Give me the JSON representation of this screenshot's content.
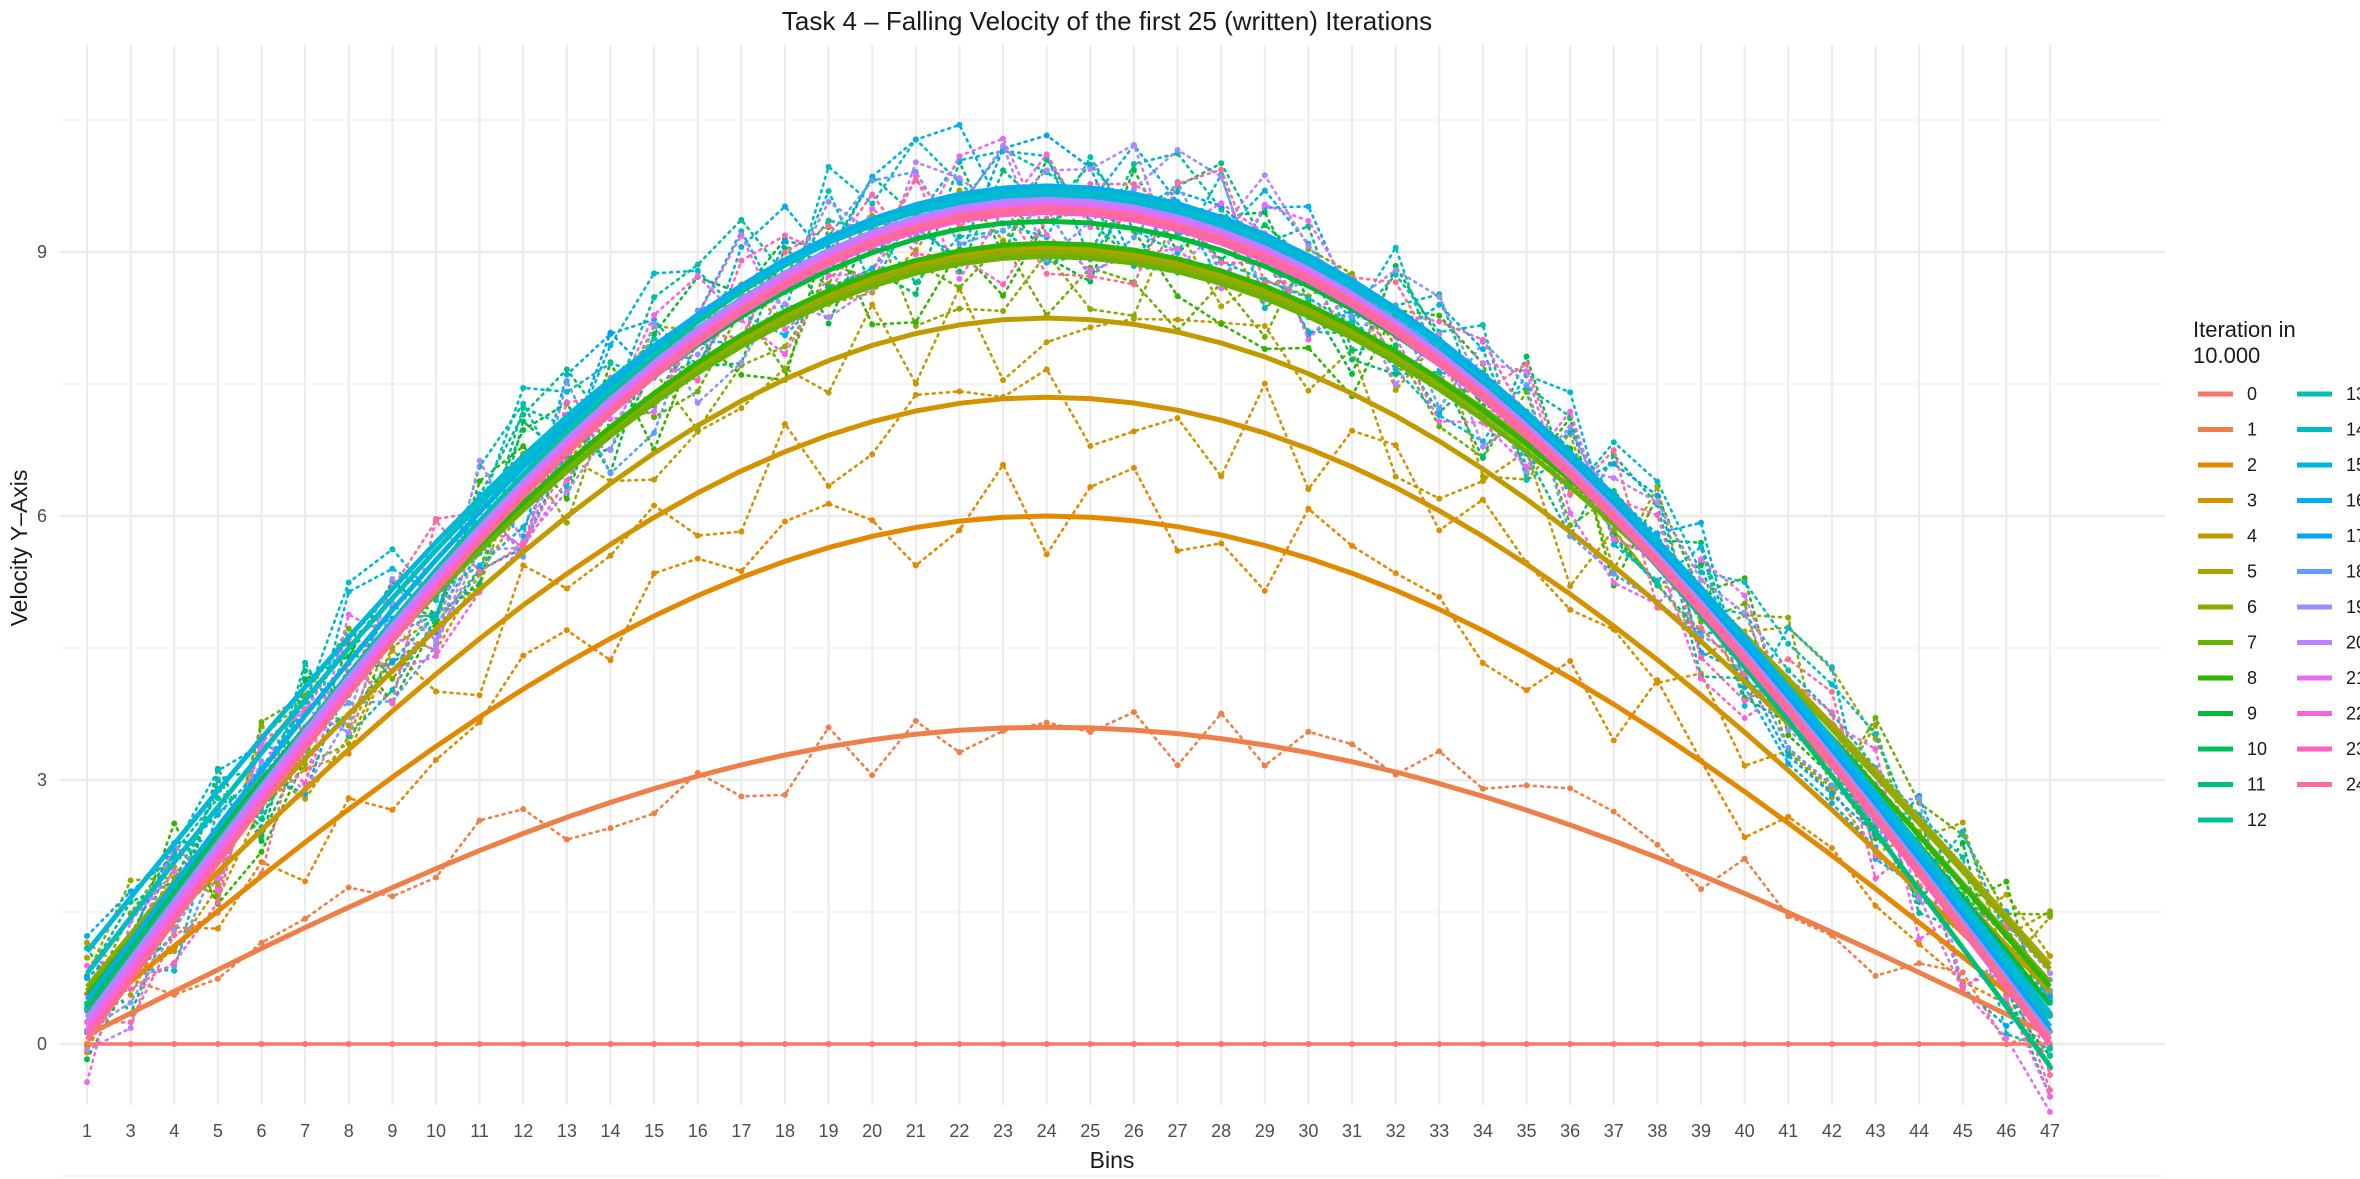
{
  "chart_data": {
    "type": "line",
    "title": "Task 4 – Falling Velocity of the first 25 (written) Iterations",
    "xlabel": "Bins",
    "ylabel": "Velocity Y–Axis",
    "x_ticks": [
      "1",
      "3",
      "4",
      "5",
      "6",
      "7",
      "8",
      "9",
      "10",
      "11",
      "12",
      "13",
      "14",
      "15",
      "16",
      "17",
      "18",
      "19",
      "20",
      "21",
      "22",
      "23",
      "24",
      "25",
      "26",
      "27",
      "28",
      "29",
      "30",
      "31",
      "32",
      "33",
      "34",
      "35",
      "36",
      "37",
      "38",
      "39",
      "40",
      "41",
      "42",
      "43",
      "44",
      "45",
      "46",
      "47"
    ],
    "y_ticks": [
      0,
      3,
      6,
      9
    ],
    "ylim": [
      -0.8,
      11.2
    ],
    "grid": true,
    "legend": {
      "title_line1": "Iteration in",
      "title_line2": "10.000",
      "placement": "right"
    },
    "series": [
      {
        "name": "0",
        "color": "#F8766D",
        "peak": 0.0,
        "start": 0.0,
        "end": 0.0
      },
      {
        "name": "1",
        "color": "#EF7F49",
        "peak": 3.6,
        "start": 0.1,
        "end": 0.1
      },
      {
        "name": "2",
        "color": "#E38900",
        "peak": 6.0,
        "start": 0.3,
        "end": 0.2
      },
      {
        "name": "3",
        "color": "#D39200",
        "peak": 7.35,
        "start": 0.5,
        "end": 0.3
      },
      {
        "name": "4",
        "color": "#C09B00",
        "peak": 8.25,
        "start": 0.55,
        "end": 0.6
      },
      {
        "name": "5",
        "color": "#A9A400",
        "peak": 9.05,
        "start": 0.6,
        "end": 0.9
      },
      {
        "name": "6",
        "color": "#8EAB00",
        "peak": 9.0,
        "start": 0.65,
        "end": 0.85
      },
      {
        "name": "7",
        "color": "#6BB100",
        "peak": 8.95,
        "start": 0.6,
        "end": 0.7
      },
      {
        "name": "8",
        "color": "#2CB600",
        "peak": 9.1,
        "start": 0.55,
        "end": 0.65
      },
      {
        "name": "9",
        "color": "#00BA38",
        "peak": 9.35,
        "start": 0.5,
        "end": 0.45
      },
      {
        "name": "10",
        "color": "#00BD5F",
        "peak": 9.5,
        "start": 0.4,
        "end": 0.2
      },
      {
        "name": "11",
        "color": "#00BF7D",
        "peak": 9.6,
        "start": 0.35,
        "end": -0.25
      },
      {
        "name": "12",
        "color": "#00C097",
        "peak": 9.7,
        "start": 0.3,
        "end": 0.1
      },
      {
        "name": "13",
        "color": "#00C0AF",
        "peak": 9.75,
        "start": 0.25,
        "end": 0.05
      },
      {
        "name": "14",
        "color": "#00BDC4",
        "peak": 9.7,
        "start": 0.8,
        "end": 0.3
      },
      {
        "name": "15",
        "color": "#00B8D7",
        "peak": 9.65,
        "start": 1.05,
        "end": 0.35
      },
      {
        "name": "16",
        "color": "#00B0E7",
        "peak": 9.75,
        "start": 0.5,
        "end": 0.2
      },
      {
        "name": "17",
        "color": "#00A5F4",
        "peak": 9.6,
        "start": 0.3,
        "end": 0.15
      },
      {
        "name": "18",
        "color": "#619CFF",
        "peak": 9.45,
        "start": 0.2,
        "end": 0.1
      },
      {
        "name": "19",
        "color": "#9690FF",
        "peak": 9.55,
        "start": 0.25,
        "end": 0.1
      },
      {
        "name": "20",
        "color": "#B983FF",
        "peak": 9.6,
        "start": 0.3,
        "end": 0.05
      },
      {
        "name": "21",
        "color": "#E76BF3",
        "peak": 9.55,
        "start": 0.2,
        "end": 0.0
      },
      {
        "name": "22",
        "color": "#F763E0",
        "peak": 9.5,
        "start": 0.15,
        "end": 0.05
      },
      {
        "name": "23",
        "color": "#FF62BC",
        "peak": 9.45,
        "start": 0.1,
        "end": 0.0
      },
      {
        "name": "24",
        "color": "#FF6C91",
        "peak": 9.5,
        "start": 0.05,
        "end": 0.05
      }
    ]
  }
}
